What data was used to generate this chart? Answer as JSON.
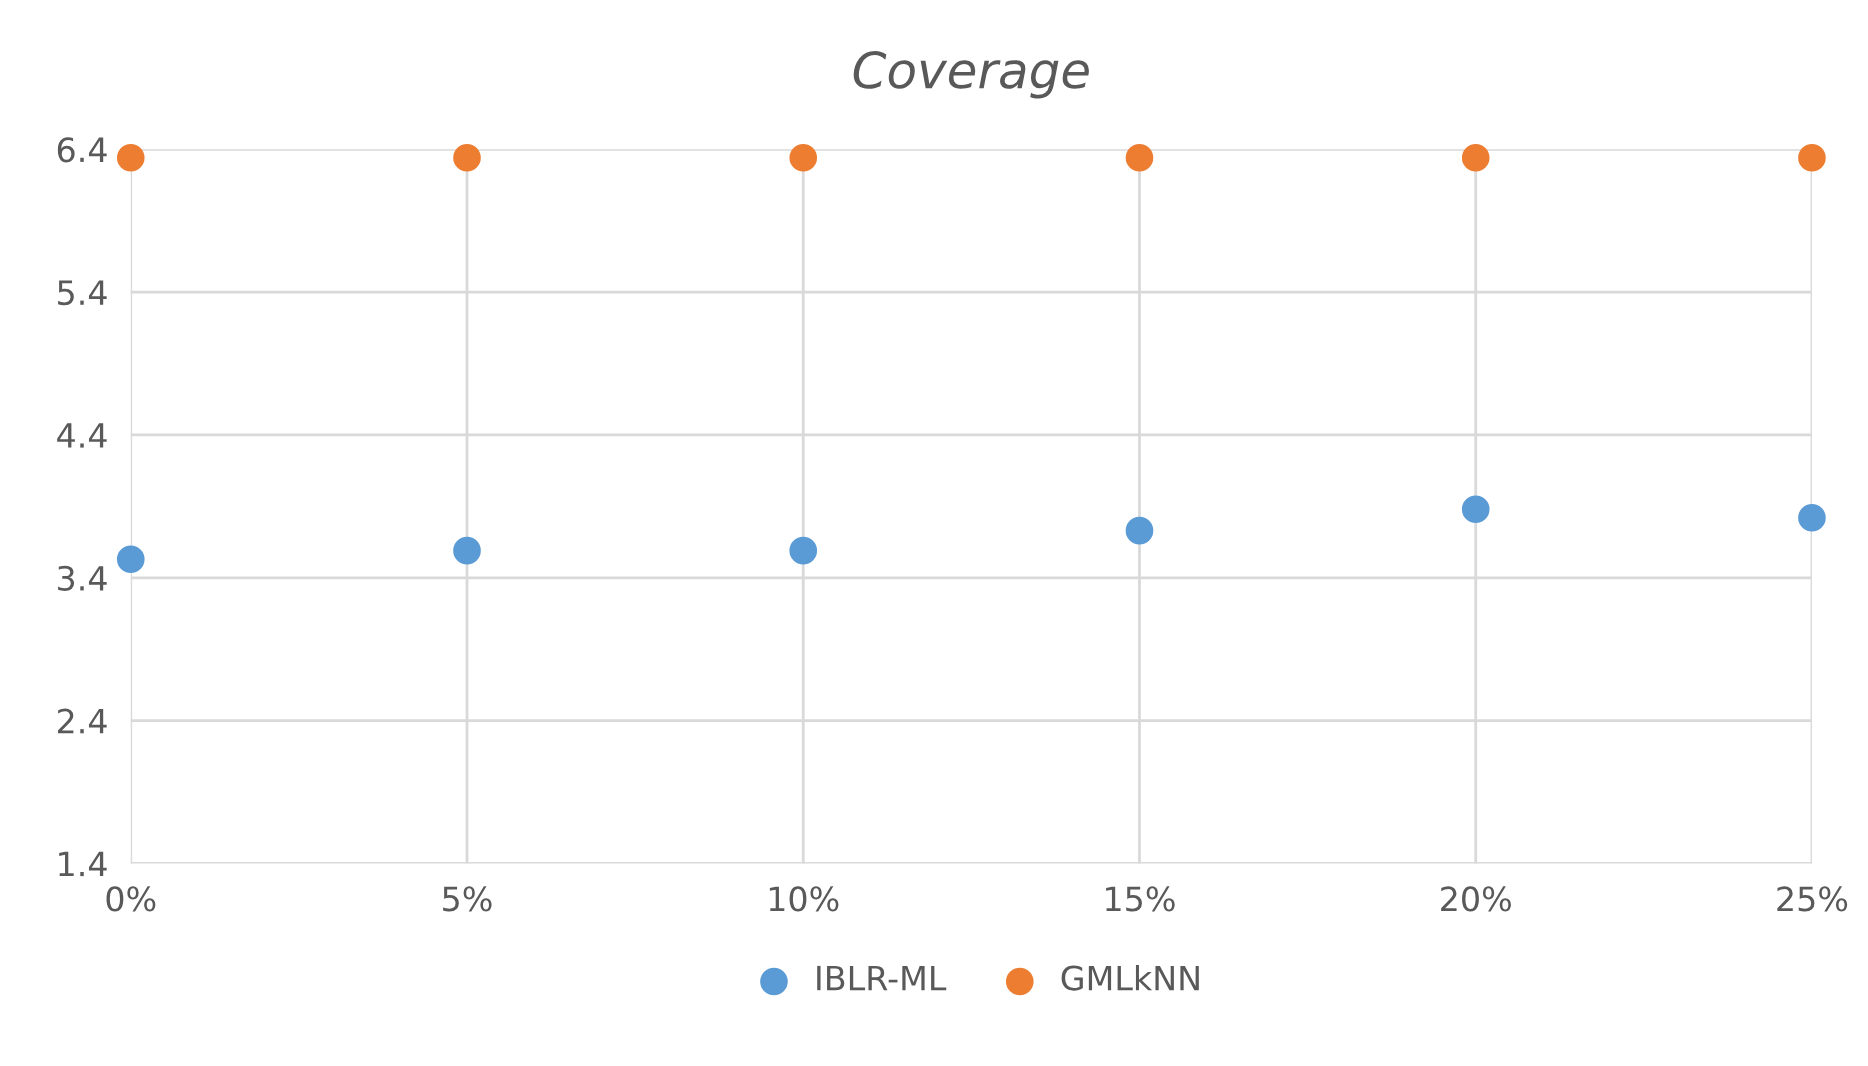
{
  "chart_data": {
    "type": "scatter",
    "title": "Coverage",
    "x": [
      0,
      5,
      10,
      15,
      20,
      25
    ],
    "series": [
      {
        "name": "IBLR-ML",
        "color": "#5b9bd5",
        "values": [
          3.53,
          3.59,
          3.59,
          3.73,
          3.88,
          3.82
        ]
      },
      {
        "name": "GMLkNN",
        "color": "#ed7d31",
        "values": [
          6.34,
          6.34,
          6.34,
          6.34,
          6.34,
          6.34
        ]
      }
    ],
    "xlim": [
      0,
      25
    ],
    "xticks": [
      {
        "value": 0,
        "label": "0%"
      },
      {
        "value": 5,
        "label": "5%"
      },
      {
        "value": 10,
        "label": "10%"
      },
      {
        "value": 15,
        "label": "15%"
      },
      {
        "value": 20,
        "label": "20%"
      },
      {
        "value": 25,
        "label": "25%"
      }
    ],
    "ylim": [
      1.4,
      6.4
    ],
    "yticks": [
      1.4,
      2.4,
      3.4,
      4.4,
      5.4,
      6.4
    ],
    "grid": true,
    "legend": "bottom",
    "marker": "circle"
  }
}
